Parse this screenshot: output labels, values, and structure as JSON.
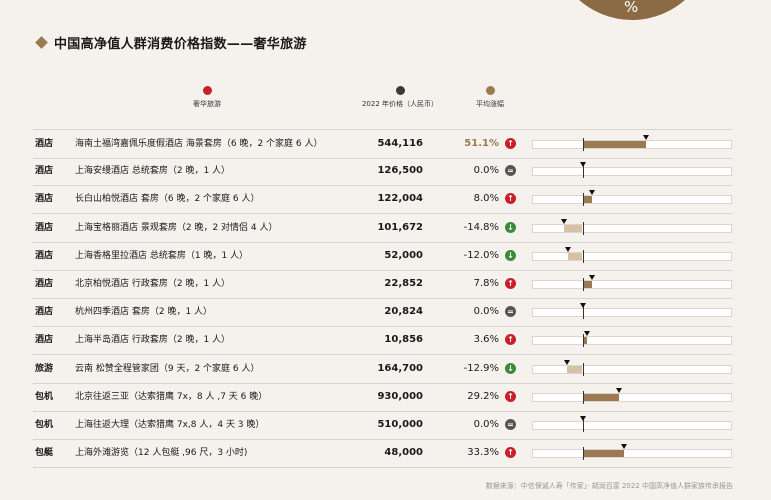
{
  "header": {
    "title": "中国高净值人群消费价格指数——奢华旅游",
    "corner_badge": "%"
  },
  "legend": [
    {
      "label": "奢华旅游",
      "color": "#c8202a"
    },
    {
      "label": "2022 年价格（人民币）",
      "color": "#3a3a3a"
    },
    {
      "label": "平均涨幅",
      "color": "#9b7a52"
    }
  ],
  "chart_data": {
    "type": "bar",
    "xlim": [
      -40,
      120
    ],
    "legend_position": "top",
    "rows": [
      {
        "category": "酒店",
        "item": "海南土福湾嘉佩乐度假酒店 海景套房（6 晚，2 个家庭 6 人）",
        "price": "544,116",
        "change": 51.1,
        "change_text": "51.1%",
        "highlight": true
      },
      {
        "category": "酒店",
        "item": "上海安缦酒店 总统套房（2 晚，1 人）",
        "price": "126,500",
        "change": 0.0,
        "change_text": "0.0%"
      },
      {
        "category": "酒店",
        "item": "长白山柏悦酒店 套房（6 晚，2 个家庭 6 人）",
        "price": "122,004",
        "change": 8.0,
        "change_text": "8.0%"
      },
      {
        "category": "酒店",
        "item": "上海宝格丽酒店 景观套房（2 晚，2 对情侣 4 人）",
        "price": "101,672",
        "change": -14.8,
        "change_text": "-14.8%"
      },
      {
        "category": "酒店",
        "item": "上海香格里拉酒店 总统套房（1 晚，1 人）",
        "price": "52,000",
        "change": -12.0,
        "change_text": "-12.0%"
      },
      {
        "category": "酒店",
        "item": "北京柏悦酒店 行政套房（2 晚，1 人）",
        "price": "22,852",
        "change": 7.8,
        "change_text": "7.8%"
      },
      {
        "category": "酒店",
        "item": "杭州四季酒店 套房（2 晚，1 人）",
        "price": "20,824",
        "change": 0.0,
        "change_text": "0.0%"
      },
      {
        "category": "酒店",
        "item": "上海半岛酒店 行政套房（2 晚，1 人）",
        "price": "10,856",
        "change": 3.6,
        "change_text": "3.6%"
      },
      {
        "category": "旅游",
        "item": "云南 松赞全程管家团（9 天，2 个家庭 6 人）",
        "price": "164,700",
        "change": -12.9,
        "change_text": "-12.9%"
      },
      {
        "category": "包机",
        "item": "北京往返三亚（达索猎鹰 7x，8 人 ,7 天 6 晚）",
        "price": "930,000",
        "change": 29.2,
        "change_text": "29.2%"
      },
      {
        "category": "包机",
        "item": "上海往返大理（达索猎鹰 7x,8 人，4 天 3 晚）",
        "price": "510,000",
        "change": 0.0,
        "change_text": "0.0%"
      },
      {
        "category": "包艇",
        "item": "上海外滩游览（12 人包艇 ,96 尺，3 小时)",
        "price": "48,000",
        "change": 33.3,
        "change_text": "33.3%"
      }
    ]
  },
  "colors": {
    "up": "#c8202a",
    "down": "#3a8a3a",
    "flat": "#555555",
    "bar_positive": "#9b7a52",
    "bar_negative": "#d7c1a4",
    "highlight_text": "#9b7a52"
  },
  "icons": {
    "up": "arrow-up-icon",
    "down": "arrow-down-icon",
    "flat": "minus-icon"
  },
  "footer": {
    "source": "数据来源：中信保诚人寿「传家」· 胡润百富 2022 中国高净值人群家族传承报告"
  }
}
